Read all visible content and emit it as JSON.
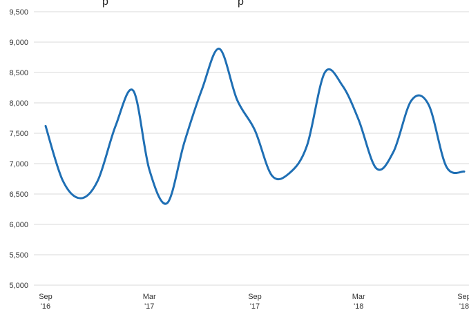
{
  "chart_data": {
    "type": "line",
    "title": "",
    "xlabel": "",
    "ylabel": "",
    "grid": true,
    "ylim": [
      5000,
      9500
    ],
    "yticks": [
      5000,
      5500,
      6000,
      6500,
      7000,
      7500,
      8000,
      8500,
      9000,
      9500
    ],
    "ytick_labels": [
      "5,000",
      "5,500",
      "6,000",
      "6,500",
      "7,000",
      "7,500",
      "8,000",
      "8,500",
      "9,000",
      "9,500"
    ],
    "xlim": [
      "2016-09-01",
      "2018-09-01"
    ],
    "xticks": [
      {
        "date": "2016-09-01",
        "line1": "Sep",
        "line2": "'16"
      },
      {
        "date": "2017-03-01",
        "line1": "Mar",
        "line2": "'17"
      },
      {
        "date": "2017-09-01",
        "line1": "Sep",
        "line2": "'17"
      },
      {
        "date": "2018-03-01",
        "line1": "Mar",
        "line2": "'18"
      },
      {
        "date": "2018-09-01",
        "line1": "Sep",
        "line2": "'18"
      }
    ],
    "series": [
      {
        "color": "#1f6fb4",
        "points": [
          {
            "x": "2016-09-01",
            "y": 7620
          },
          {
            "x": "2016-10-01",
            "y": 6720
          },
          {
            "x": "2016-11-01",
            "y": 6430
          },
          {
            "x": "2016-12-01",
            "y": 6720
          },
          {
            "x": "2017-01-01",
            "y": 7620
          },
          {
            "x": "2017-02-01",
            "y": 8200
          },
          {
            "x": "2017-03-01",
            "y": 6900
          },
          {
            "x": "2017-04-01",
            "y": 6350
          },
          {
            "x": "2017-05-01",
            "y": 7350
          },
          {
            "x": "2017-06-01",
            "y": 8230
          },
          {
            "x": "2017-07-01",
            "y": 8890
          },
          {
            "x": "2017-08-01",
            "y": 8050
          },
          {
            "x": "2017-09-01",
            "y": 7550
          },
          {
            "x": "2017-10-01",
            "y": 6800
          },
          {
            "x": "2017-11-01",
            "y": 6850
          },
          {
            "x": "2017-12-01",
            "y": 7300
          },
          {
            "x": "2018-01-01",
            "y": 8500
          },
          {
            "x": "2018-02-01",
            "y": 8280
          },
          {
            "x": "2018-03-01",
            "y": 7720
          },
          {
            "x": "2018-04-01",
            "y": 6920
          },
          {
            "x": "2018-05-01",
            "y": 7200
          },
          {
            "x": "2018-06-01",
            "y": 8040
          },
          {
            "x": "2018-07-01",
            "y": 7970
          },
          {
            "x": "2018-08-01",
            "y": 6950
          },
          {
            "x": "2018-09-01",
            "y": 6870
          }
        ]
      }
    ]
  }
}
